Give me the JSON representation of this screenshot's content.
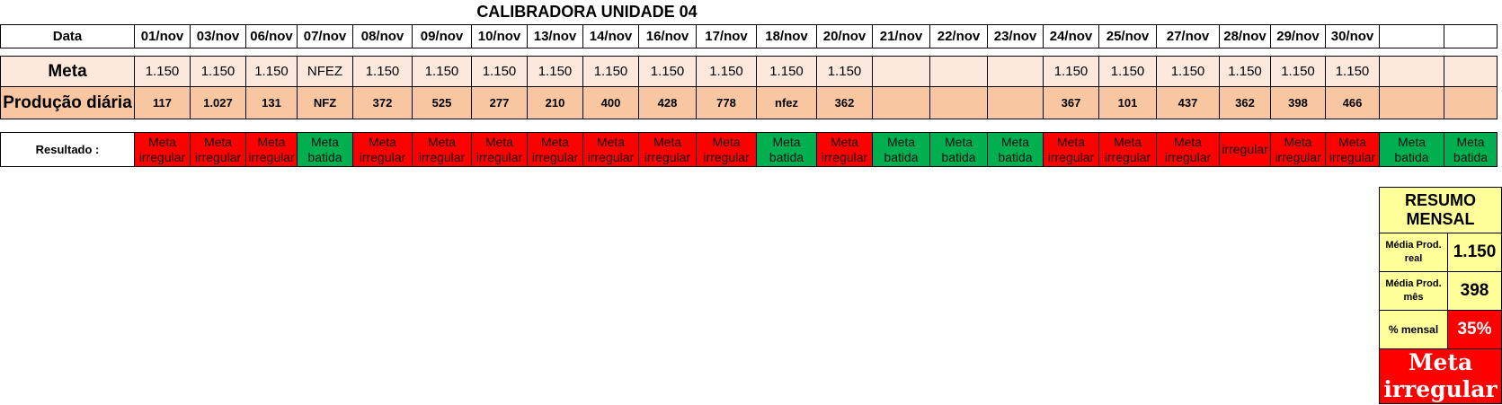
{
  "title": "CALIBRADORA UNIDADE 04",
  "labels": {
    "data": "Data",
    "meta": "Meta",
    "producao": "Produção diária",
    "resultado": "Resultado :"
  },
  "columns": [
    {
      "date": "01/nov",
      "meta": "1.150",
      "prod": "117",
      "res": "Meta irregular",
      "status": "red"
    },
    {
      "date": "03/nov",
      "meta": "1.150",
      "prod": "1.027",
      "res": "Meta irregular",
      "status": "red"
    },
    {
      "date": "06/nov",
      "meta": "1.150",
      "prod": "131",
      "res": "Meta irregular",
      "status": "red"
    },
    {
      "date": "07/nov",
      "meta": "NFEZ",
      "prod": "NFZ",
      "res": "Meta batida",
      "status": "green"
    },
    {
      "date": "08/nov",
      "meta": "1.150",
      "prod": "372",
      "res": "Meta irregular",
      "status": "red"
    },
    {
      "date": "09/nov",
      "meta": "1.150",
      "prod": "525",
      "res": "Meta irregular",
      "status": "red"
    },
    {
      "date": "10/nov",
      "meta": "1.150",
      "prod": "277",
      "res": "Meta irregular",
      "status": "red"
    },
    {
      "date": "13/nov",
      "meta": "1.150",
      "prod": "210",
      "res": "Meta irregular",
      "status": "red"
    },
    {
      "date": "14/nov",
      "meta": "1.150",
      "prod": "400",
      "res": "Meta irregular",
      "status": "red"
    },
    {
      "date": "16/nov",
      "meta": "1.150",
      "prod": "428",
      "res": "Meta irregular",
      "status": "red"
    },
    {
      "date": "17/nov",
      "meta": "1.150",
      "prod": "778",
      "res": "Meta irregular",
      "status": "red"
    },
    {
      "date": "18/nov",
      "meta": "1.150",
      "prod": "nfez",
      "res": "Meta batida",
      "status": "green"
    },
    {
      "date": "20/nov",
      "meta": "1.150",
      "prod": "362",
      "res": "Meta irregular",
      "status": "red"
    },
    {
      "date": "21/nov",
      "meta": "",
      "prod": "",
      "res": "Meta batida",
      "status": "green"
    },
    {
      "date": "22/nov",
      "meta": "",
      "prod": "",
      "res": "Meta batida",
      "status": "green"
    },
    {
      "date": "23/nov",
      "meta": "",
      "prod": "",
      "res": "Meta batida",
      "status": "green"
    },
    {
      "date": "24/nov",
      "meta": "1.150",
      "prod": "367",
      "res": "Meta irregular",
      "status": "red"
    },
    {
      "date": "25/nov",
      "meta": "1.150",
      "prod": "101",
      "res": "Meta irregular",
      "status": "red"
    },
    {
      "date": "27/nov",
      "meta": "1.150",
      "prod": "437",
      "res": "Meta irregular",
      "status": "red"
    },
    {
      "date": "28/nov",
      "meta": "1.150",
      "prod": "362",
      "res": "irregular",
      "status": "red"
    },
    {
      "date": "29/nov",
      "meta": "1.150",
      "prod": "398",
      "res": "Meta irregular",
      "status": "red"
    },
    {
      "date": "30/nov",
      "meta": "1.150",
      "prod": "466",
      "res": "Meta irregular",
      "status": "red"
    },
    {
      "date": "",
      "meta": "",
      "prod": "",
      "res": "Meta batida",
      "status": "green"
    },
    {
      "date": "",
      "meta": "",
      "prod": "",
      "res": "Meta batida",
      "status": "green"
    }
  ],
  "resumo": {
    "title": "RESUMO MENSAL",
    "media_real_label": "Média Prod. real",
    "media_real_value": "1.150",
    "media_mes_label": "Média Prod. mês",
    "media_mes_value": "398",
    "pct_label": "% mensal",
    "pct_value": "35%",
    "final": "Meta irregular"
  },
  "colors": {
    "red": "#ff0000",
    "green": "#00b050",
    "meta_bg": "#fce9dc",
    "prod_bg": "#f8c7a2",
    "resumo_bg": "#ffff99"
  }
}
